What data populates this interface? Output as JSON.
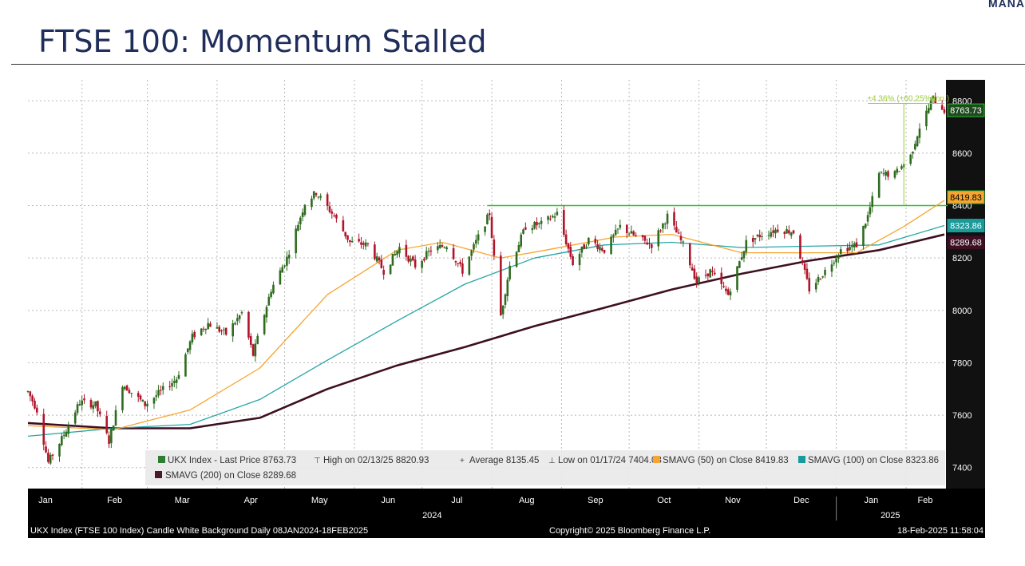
{
  "corner_text": "MANA",
  "title": "FTSE 100: Momentum Stalled",
  "chart_data": {
    "type": "candlestick",
    "instrument": "UKX Index",
    "ylim": [
      7320,
      8880
    ],
    "y_ticks": [
      7400,
      7600,
      7800,
      8000,
      8200,
      8400,
      8600,
      8800
    ],
    "x_months": [
      "Jan",
      "Feb",
      "Mar",
      "Apr",
      "May",
      "Jun",
      "Jul",
      "Aug",
      "Sep",
      "Oct",
      "Nov",
      "Dec",
      "Jan",
      "Feb"
    ],
    "x_years": [
      "2024",
      "2025"
    ],
    "grid": true,
    "legend_position": "bottom-left",
    "close_path": [
      [
        "2024-01-08",
        7690
      ],
      [
        "2024-01-12",
        7620
      ],
      [
        "2024-01-17",
        7420
      ],
      [
        "2024-01-23",
        7510
      ],
      [
        "2024-01-31",
        7650
      ],
      [
        "2024-02-07",
        7640
      ],
      [
        "2024-02-13",
        7500
      ],
      [
        "2024-02-19",
        7720
      ],
      [
        "2024-02-29",
        7640
      ],
      [
        "2024-03-07",
        7690
      ],
      [
        "2024-03-14",
        7740
      ],
      [
        "2024-03-21",
        7900
      ],
      [
        "2024-03-28",
        7950
      ],
      [
        "2024-04-05",
        7910
      ],
      [
        "2024-04-12",
        7990
      ],
      [
        "2024-04-17",
        7830
      ],
      [
        "2024-04-25",
        8080
      ],
      [
        "2024-05-02",
        8200
      ],
      [
        "2024-05-10",
        8410
      ],
      [
        "2024-05-15",
        8450
      ],
      [
        "2024-05-23",
        8360
      ],
      [
        "2024-05-30",
        8260
      ],
      [
        "2024-06-07",
        8250
      ],
      [
        "2024-06-14",
        8150
      ],
      [
        "2024-06-21",
        8240
      ],
      [
        "2024-06-28",
        8170
      ],
      [
        "2024-07-05",
        8230
      ],
      [
        "2024-07-12",
        8250
      ],
      [
        "2024-07-19",
        8150
      ],
      [
        "2024-07-26",
        8280
      ],
      [
        "2024-07-31",
        8370
      ],
      [
        "2024-08-02",
        8200
      ],
      [
        "2024-08-05",
        7980
      ],
      [
        "2024-08-09",
        8170
      ],
      [
        "2024-08-16",
        8320
      ],
      [
        "2024-08-23",
        8330
      ],
      [
        "2024-08-30",
        8370
      ],
      [
        "2024-09-06",
        8180
      ],
      [
        "2024-09-13",
        8270
      ],
      [
        "2024-09-20",
        8230
      ],
      [
        "2024-09-27",
        8320
      ],
      [
        "2024-10-04",
        8280
      ],
      [
        "2024-10-11",
        8250
      ],
      [
        "2024-10-18",
        8360
      ],
      [
        "2024-10-25",
        8250
      ],
      [
        "2024-10-31",
        8110
      ],
      [
        "2024-11-06",
        8150
      ],
      [
        "2024-11-14",
        8060
      ],
      [
        "2024-11-22",
        8260
      ],
      [
        "2024-11-29",
        8290
      ],
      [
        "2024-12-06",
        8310
      ],
      [
        "2024-12-13",
        8300
      ],
      [
        "2024-12-20",
        8080
      ],
      [
        "2024-12-27",
        8150
      ],
      [
        "2025-01-03",
        8230
      ],
      [
        "2025-01-10",
        8250
      ],
      [
        "2025-01-15",
        8360
      ],
      [
        "2025-01-20",
        8520
      ],
      [
        "2025-01-27",
        8520
      ],
      [
        "2025-02-03",
        8590
      ],
      [
        "2025-02-07",
        8700
      ],
      [
        "2025-02-13",
        8810
      ],
      [
        "2025-02-18",
        8763.73
      ]
    ],
    "sma_50": [
      [
        "2024-01-08",
        7560
      ],
      [
        "2024-02-15",
        7545
      ],
      [
        "2024-03-20",
        7620
      ],
      [
        "2024-04-20",
        7780
      ],
      [
        "2024-05-20",
        8060
      ],
      [
        "2024-06-20",
        8230
      ],
      [
        "2024-07-10",
        8260
      ],
      [
        "2024-08-05",
        8200
      ],
      [
        "2024-08-25",
        8230
      ],
      [
        "2024-09-25",
        8280
      ],
      [
        "2024-10-20",
        8290
      ],
      [
        "2024-11-20",
        8220
      ],
      [
        "2024-12-20",
        8220
      ],
      [
        "2025-01-10",
        8220
      ],
      [
        "2025-01-31",
        8320
      ],
      [
        "2025-02-18",
        8419.83
      ]
    ],
    "sma_100": [
      [
        "2024-01-08",
        7520
      ],
      [
        "2024-02-15",
        7550
      ],
      [
        "2024-03-20",
        7565
      ],
      [
        "2024-04-20",
        7660
      ],
      [
        "2024-05-20",
        7810
      ],
      [
        "2024-06-20",
        7960
      ],
      [
        "2024-07-20",
        8100
      ],
      [
        "2024-08-20",
        8200
      ],
      [
        "2024-09-20",
        8250
      ],
      [
        "2024-10-20",
        8260
      ],
      [
        "2024-11-20",
        8240
      ],
      [
        "2024-12-20",
        8245
      ],
      [
        "2025-01-20",
        8250
      ],
      [
        "2025-02-18",
        8323.86
      ]
    ],
    "sma_200": [
      [
        "2024-01-08",
        7570
      ],
      [
        "2024-02-15",
        7550
      ],
      [
        "2024-03-20",
        7550
      ],
      [
        "2024-04-20",
        7590
      ],
      [
        "2024-05-20",
        7700
      ],
      [
        "2024-06-20",
        7790
      ],
      [
        "2024-07-20",
        7860
      ],
      [
        "2024-08-20",
        7940
      ],
      [
        "2024-09-20",
        8010
      ],
      [
        "2024-10-20",
        8080
      ],
      [
        "2024-11-20",
        8140
      ],
      [
        "2024-12-20",
        8190
      ],
      [
        "2025-01-20",
        8230
      ],
      [
        "2025-02-18",
        8289.68
      ]
    ],
    "resistance_level": 8400,
    "price_labels": [
      {
        "text": "8763.73",
        "value": 8763.73,
        "kind": "last"
      },
      {
        "text": "8419.83",
        "value": 8419.83,
        "kind": "sma50"
      },
      {
        "text": "8323.86",
        "value": 8323.86,
        "kind": "sma100"
      },
      {
        "text": "8289.68",
        "value": 8289.68,
        "kind": "sma200"
      }
    ],
    "annotation": "+4.36% (+60.25%ann.)",
    "legend": [
      {
        "name": "UKX Index - Last Price 8763.73",
        "color": "#2e7d32",
        "marker": "square"
      },
      {
        "name": "High on 02/13/25 8820.93",
        "color": "#444444",
        "marker": "high"
      },
      {
        "name": "Average 8135.45",
        "color": "#444444",
        "marker": "avg"
      },
      {
        "name": "Low on 01/17/24 7404.08",
        "color": "#444444",
        "marker": "low"
      },
      {
        "name": "SMAVG (50)  on Close 8419.83",
        "color": "#f7a531",
        "marker": "square"
      },
      {
        "name": "SMAVG (100)  on Close 8323.86",
        "color": "#1a9a9a",
        "marker": "square"
      },
      {
        "name": "SMAVG (200)  on Close 8289.68",
        "color": "#4a1a2c",
        "marker": "square"
      }
    ],
    "colors": {
      "up": "#2e6b1f",
      "down": "#b0142a",
      "sma50": "#f7a531",
      "sma100": "#26a6a6",
      "sma200": "#3d0f22",
      "resistance": "#2ec12e"
    }
  },
  "footer": {
    "left": "UKX Index (FTSE 100 Index) Candle White Background  Daily 08JAN2024-18FEB2025",
    "center": "Copyright© 2025 Bloomberg Finance L.P.",
    "right": "18-Feb-2025 11:58:04"
  }
}
